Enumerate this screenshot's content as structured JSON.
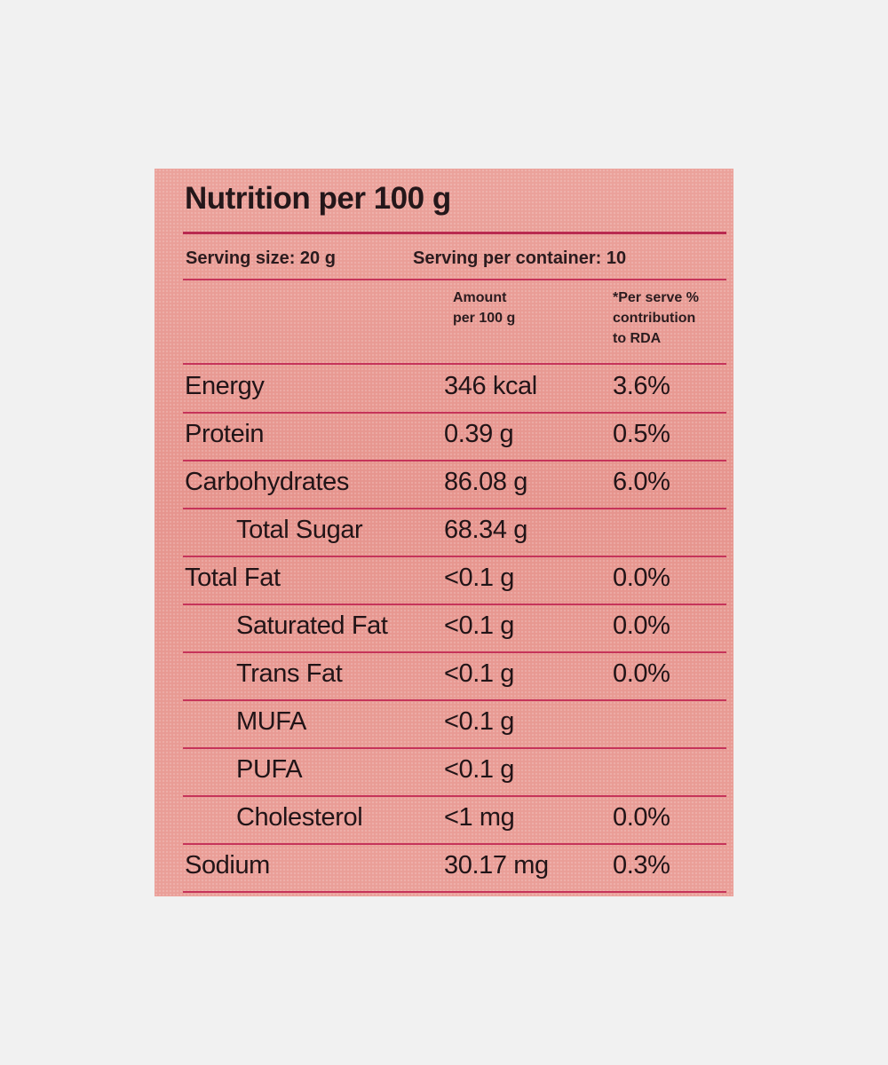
{
  "label": {
    "title": "Nutrition per 100 g",
    "serving_size": "Serving size: 20 g",
    "servings_per_container": "Serving per container: 10",
    "column_headers": {
      "amount": [
        "Amount",
        "per 100 g"
      ],
      "rda": [
        "*Per serve %",
        "contribution",
        "to RDA"
      ]
    },
    "rows": [
      {
        "name": "Energy",
        "amount": "346 kcal",
        "rda": "3.6%"
      },
      {
        "name": "Protein",
        "amount": "0.39 g",
        "rda": "0.5%"
      },
      {
        "name": "Carbohydrates",
        "amount": "86.08 g",
        "rda": "6.0%"
      },
      {
        "name": "Total Sugar",
        "amount": "68.34 g",
        "rda": ""
      },
      {
        "name": "Total Fat",
        "amount": "<0.1 g",
        "rda": "0.0%"
      },
      {
        "name": "Saturated Fat",
        "amount": "<0.1 g",
        "rda": "0.0%"
      },
      {
        "name": "Trans Fat",
        "amount": "<0.1 g",
        "rda": "0.0%"
      },
      {
        "name": "MUFA",
        "amount": "<0.1 g",
        "rda": ""
      },
      {
        "name": "PUFA",
        "amount": "<0.1 g",
        "rda": ""
      },
      {
        "name": "Cholesterol",
        "amount": "<1 mg",
        "rda": "0.0%"
      },
      {
        "name": "Sodium",
        "amount": "30.17 mg",
        "rda": "0.3%"
      }
    ]
  },
  "colors": {
    "panel": "#e99a93",
    "rule": "#c6345a",
    "text": "#24171a",
    "background": "#f1f1f1"
  }
}
